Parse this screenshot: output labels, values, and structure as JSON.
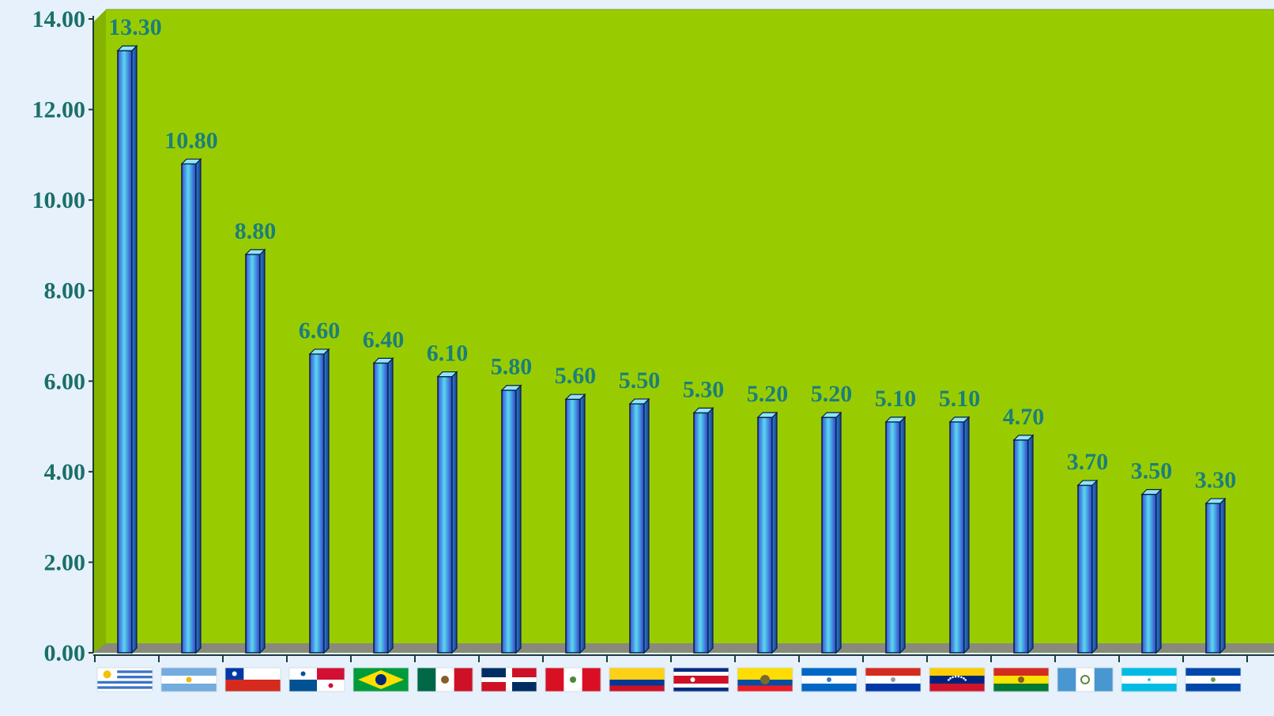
{
  "chart_data": {
    "type": "bar",
    "title": "",
    "xlabel": "",
    "ylabel": "",
    "ylim": [
      0,
      14
    ],
    "y_ticks": [
      "0.00",
      "2.00",
      "4.00",
      "6.00",
      "8.00",
      "10.00",
      "12.00",
      "14.00"
    ],
    "categories": [
      "uruguay-flag",
      "argentina-flag",
      "chile-flag",
      "panama-flag",
      "brazil-flag",
      "mexico-flag",
      "dominican-republic-flag",
      "peru-flag",
      "colombia-flag",
      "costa-rica-flag",
      "ecuador-flag",
      "nicaragua-flag",
      "paraguay-flag",
      "venezuela-flag",
      "bolivia-flag",
      "guatemala-flag",
      "honduras-flag",
      "el-salvador-flag"
    ],
    "values": [
      13.3,
      10.8,
      8.8,
      6.6,
      6.4,
      6.1,
      5.8,
      5.6,
      5.5,
      5.3,
      5.2,
      5.2,
      5.1,
      5.1,
      4.7,
      3.7,
      3.5,
      3.3
    ],
    "data_labels": [
      "13.30",
      "10.80",
      "8.80",
      "6.60",
      "6.40",
      "6.10",
      "5.80",
      "5.60",
      "5.50",
      "5.30",
      "5.20",
      "5.20",
      "5.10",
      "5.10",
      "4.70",
      "3.70",
      "3.50",
      "3.30"
    ],
    "grid": false,
    "legend": "none",
    "colors": {
      "plot_background": "#99cc00",
      "floor": "#8a8a7a",
      "page_background": "#e6f1fb",
      "bar_light": "#5ad8f2",
      "bar_dark": "#2d3fc8",
      "label_text": "#1b7f7a",
      "axis_text": "#1b6f6a"
    }
  }
}
